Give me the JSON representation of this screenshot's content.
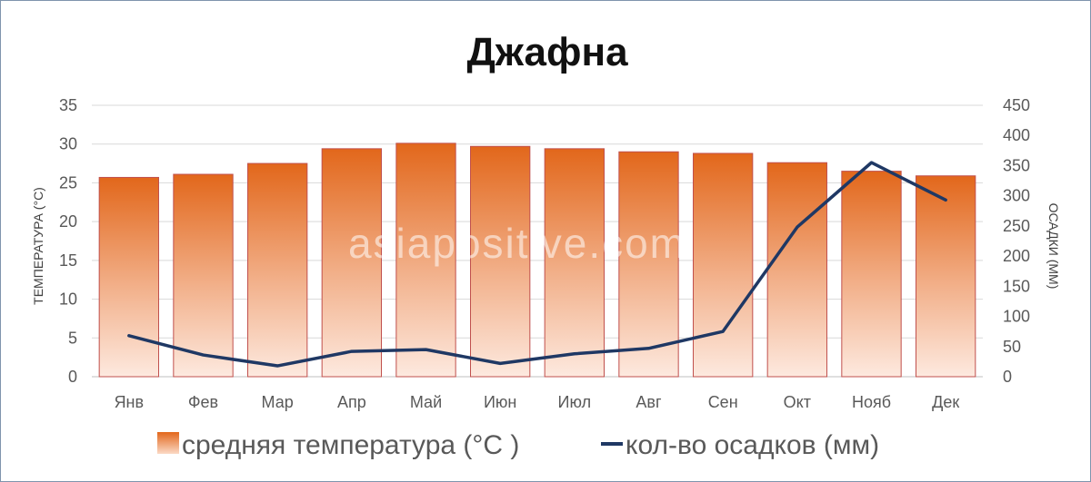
{
  "chart_data": {
    "type": "bar",
    "title": "Джафна",
    "watermark": "asiapositive.com",
    "categories": [
      "Янв",
      "Фев",
      "Мар",
      "Апр",
      "Май",
      "Июн",
      "Июл",
      "Авг",
      "Сен",
      "Окт",
      "Нояб",
      "Дек"
    ],
    "series": [
      {
        "name": "средняя температура (°C )",
        "kind": "bar",
        "axis": "left",
        "color": "#e07020",
        "values": [
          25.7,
          26.1,
          27.5,
          29.4,
          30.1,
          29.7,
          29.4,
          29.0,
          28.8,
          27.6,
          26.5,
          25.9
        ]
      },
      {
        "name": "кол-во осадков (мм)",
        "kind": "line",
        "axis": "right",
        "color": "#1f3864",
        "values": [
          68,
          36,
          18,
          42,
          45,
          22,
          38,
          47,
          75,
          248,
          355,
          293
        ]
      }
    ],
    "y_left": {
      "label": "ТЕМПЕРАТУРА (°C)",
      "min": 0,
      "max": 35,
      "ticks": [
        0,
        5,
        10,
        15,
        20,
        25,
        30,
        35
      ]
    },
    "y_right": {
      "label": "ОСАДКИ (ММ)",
      "min": 0,
      "max": 450,
      "ticks": [
        0,
        50,
        100,
        150,
        200,
        250,
        300,
        350,
        400,
        450
      ]
    },
    "grid": true,
    "legend_position": "bottom"
  }
}
